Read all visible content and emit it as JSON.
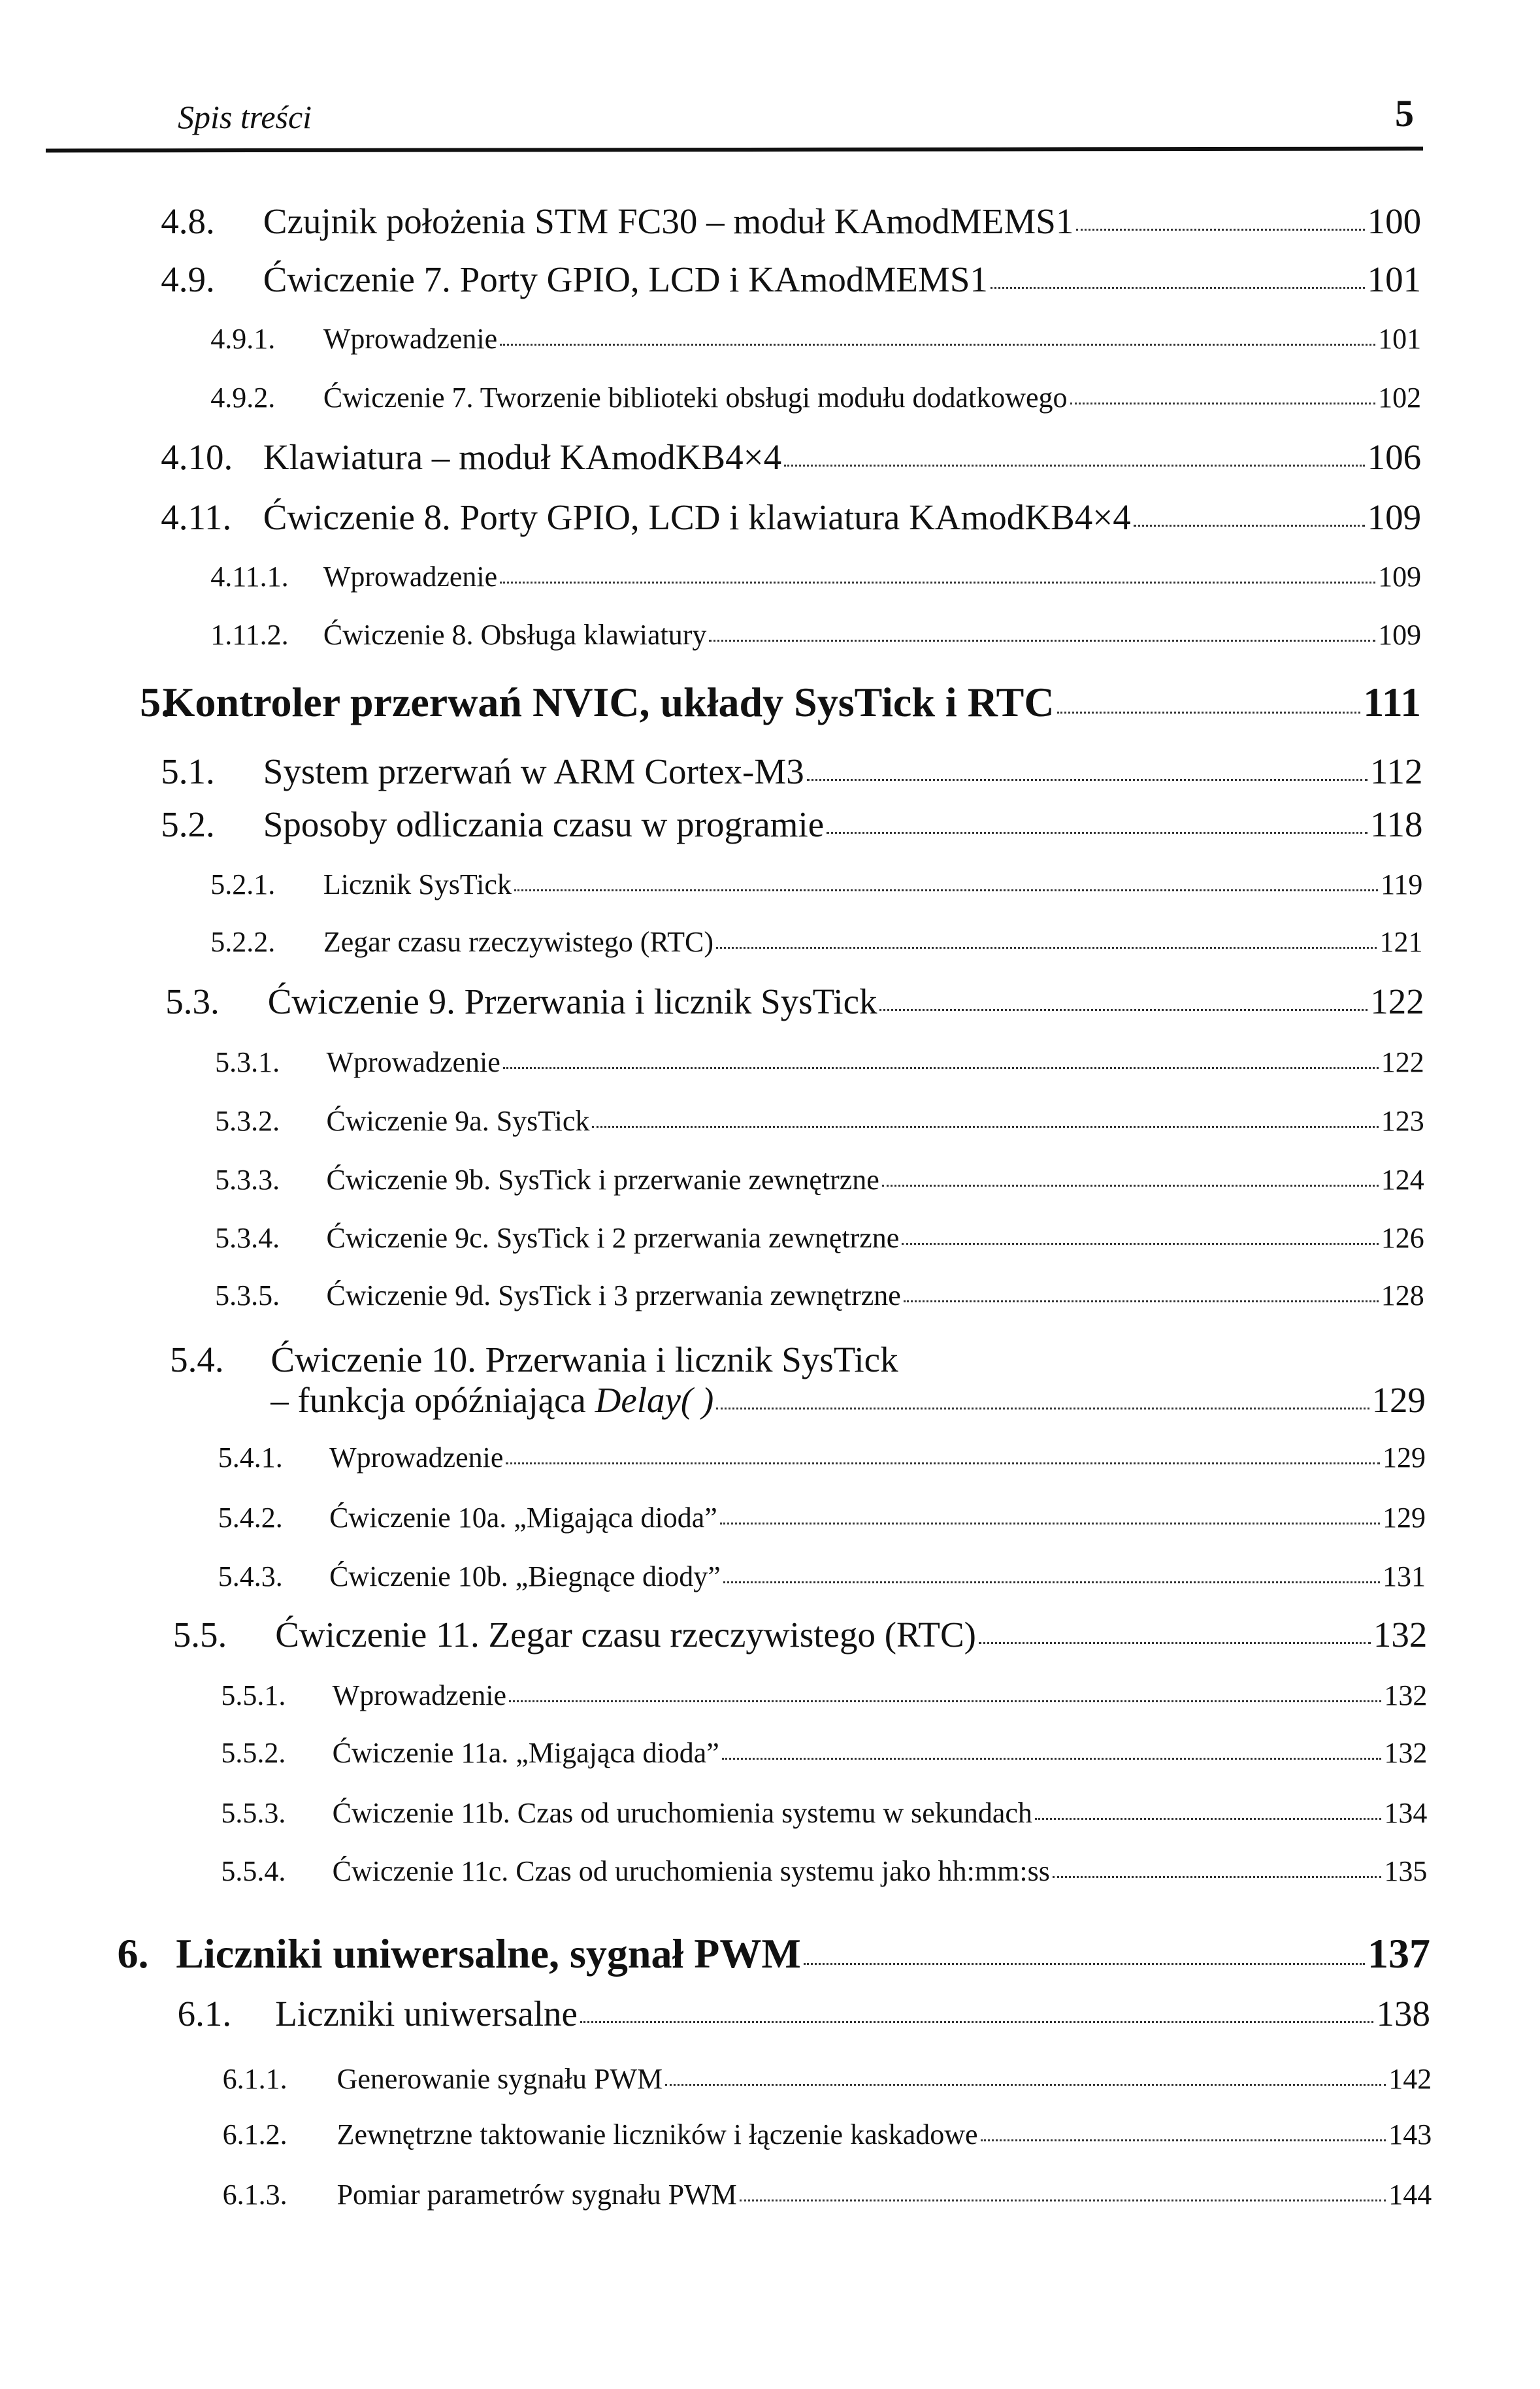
{
  "header": {
    "title": "Spis treści",
    "page_number": "5"
  },
  "entries": [
    {
      "num": "4.8.",
      "title": "Czujnik położenia STM FC30 – moduł KAmodMEMS1",
      "page": "100",
      "level": 1
    },
    {
      "num": "4.9.",
      "title": "Ćwiczenie 7. Porty GPIO, LCD i KAmodMEMS1",
      "page": "101",
      "level": 1
    },
    {
      "num": "4.9.1.",
      "title": "Wprowadzenie",
      "page": "101",
      "level": 2
    },
    {
      "num": "4.9.2.",
      "title": "Ćwiczenie 7. Tworzenie biblioteki obsługi modułu dodatkowego",
      "page": "102",
      "level": 2
    },
    {
      "num": "4.10.",
      "title": "Klawiatura – moduł KAmodKB4×4",
      "page": "106",
      "level": 1
    },
    {
      "num": "4.11.",
      "title": "Ćwiczenie 8. Porty GPIO, LCD i klawiatura KAmodKB4×4",
      "page": "109",
      "level": 1
    },
    {
      "num": "4.11.1.",
      "title": "Wprowadzenie",
      "page": "109",
      "level": 2
    },
    {
      "num": "1.11.2.",
      "title": "Ćwiczenie 8. Obsługa klawiatury",
      "page": "109",
      "level": 2
    },
    {
      "num": "5.",
      "title": "Kontroler przerwań NVIC, układy SysTick i RTC",
      "page": "111",
      "level": 0
    },
    {
      "num": "5.1.",
      "title": "System przerwań w ARM Cortex-M3",
      "page": "112",
      "level": 1
    },
    {
      "num": "5.2.",
      "title": "Sposoby odliczania czasu w programie",
      "page": "118",
      "level": 1
    },
    {
      "num": "5.2.1.",
      "title": "Licznik SysTick",
      "page": "119",
      "level": 2
    },
    {
      "num": "5.2.2.",
      "title": "Zegar czasu rzeczywistego (RTC)",
      "page": "121",
      "level": 2
    },
    {
      "num": "5.3.",
      "title": "Ćwiczenie 9. Przerwania i licznik SysTick",
      "page": "122",
      "level": 1
    },
    {
      "num": "5.3.1.",
      "title": "Wprowadzenie",
      "page": "122",
      "level": 2
    },
    {
      "num": "5.3.2.",
      "title": "Ćwiczenie 9a. SysTick",
      "page": "123",
      "level": 2
    },
    {
      "num": "5.3.3.",
      "title": "Ćwiczenie 9b. SysTick i przerwanie zewnętrzne",
      "page": "124",
      "level": 2
    },
    {
      "num": "5.3.4.",
      "title": "Ćwiczenie 9c. SysTick i 2 przerwania zewnętrzne",
      "page": "126",
      "level": 2
    },
    {
      "num": "5.3.5.",
      "title": "Ćwiczenie 9d. SysTick i 3 przerwania zewnętrzne",
      "page": "128",
      "level": 2
    },
    {
      "num": "5.4.",
      "title": "Ćwiczenie 10. Przerwania i licznik SysTick",
      "title_cont": "– funkcja opóźniająca ",
      "title_italic": "Delay( )",
      "page": "129",
      "level": 1
    },
    {
      "num": "5.4.1.",
      "title": "Wprowadzenie",
      "page": "129",
      "level": 2
    },
    {
      "num": "5.4.2.",
      "title": "Ćwiczenie 10a. „Migająca dioda”",
      "page": "129",
      "level": 2
    },
    {
      "num": "5.4.3.",
      "title": "Ćwiczenie 10b. „Biegnące diody”",
      "page": "131",
      "level": 2
    },
    {
      "num": "5.5.",
      "title": "Ćwiczenie 11. Zegar czasu rzeczywistego (RTC)",
      "page": "132",
      "level": 1
    },
    {
      "num": "5.5.1.",
      "title": "Wprowadzenie",
      "page": "132",
      "level": 2
    },
    {
      "num": "5.5.2.",
      "title": "Ćwiczenie 11a. „Migająca dioda”",
      "page": "132",
      "level": 2
    },
    {
      "num": "5.5.3.",
      "title": "Ćwiczenie 11b. Czas od uruchomienia systemu w sekundach",
      "page": "134",
      "level": 2
    },
    {
      "num": "5.5.4.",
      "title": "Ćwiczenie 11c. Czas od uruchomienia systemu jako hh:mm:ss",
      "page": "135",
      "level": 2
    },
    {
      "num": "6.",
      "title": "Liczniki uniwersalne, sygnał PWM",
      "page": "137",
      "level": 0
    },
    {
      "num": "6.1.",
      "title": "Liczniki uniwersalne",
      "page": "138",
      "level": 1
    },
    {
      "num": "6.1.1.",
      "title": "Generowanie sygnału PWM",
      "page": "142",
      "level": 2
    },
    {
      "num": "6.1.2.",
      "title": "Zewnętrzne taktowanie liczników i łączenie kaskadowe",
      "page": "143",
      "level": 2
    },
    {
      "num": "6.1.3.",
      "title": "Pomiar parametrów sygnału PWM",
      "page": "144",
      "level": 2
    }
  ]
}
